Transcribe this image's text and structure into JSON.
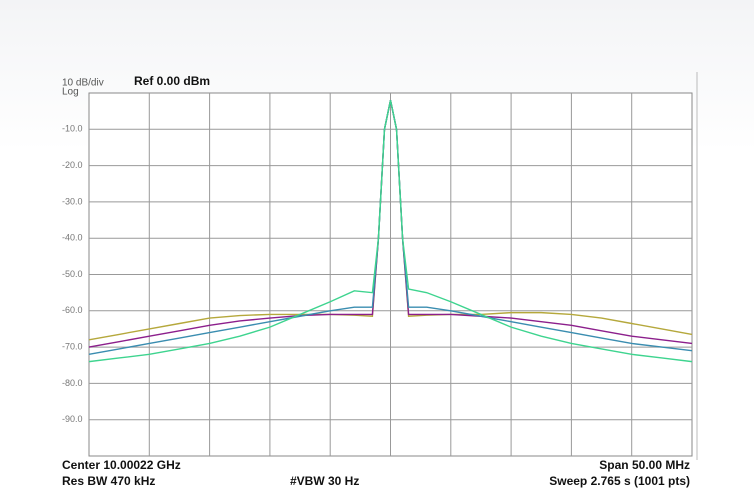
{
  "chart_data": {
    "type": "line",
    "scale_label": "10 dB/div",
    "scale_type": "Log",
    "ref_label": "Ref 0.00 dBm",
    "footer": {
      "center": "Center 10.00022 GHz",
      "span": "Span 50.00 MHz",
      "res_bw": "Res BW 470 kHz",
      "vbw": "#VBW 30 Hz",
      "sweep": "Sweep  2.765 s (1001 pts)"
    },
    "xlim": [
      9.97522,
      10.02522
    ],
    "ylim": [
      -100,
      0
    ],
    "yticks": [
      {
        "value": -10,
        "label": "-10.0"
      },
      {
        "value": -20,
        "label": "-20.0"
      },
      {
        "value": -30,
        "label": "-30.0"
      },
      {
        "value": -40,
        "label": "-40.0"
      },
      {
        "value": -50,
        "label": "-50.0"
      },
      {
        "value": -60,
        "label": "-60.0"
      },
      {
        "value": -70,
        "label": "-70.0"
      },
      {
        "value": -80,
        "label": "-80.0"
      },
      {
        "value": -90,
        "label": "-90.0"
      }
    ],
    "grid": true,
    "x": [
      9.97522,
      9.97772,
      9.98022,
      9.98272,
      9.98522,
      9.98772,
      9.99022,
      9.99272,
      9.99522,
      9.99722,
      9.99872,
      9.99922,
      9.99972,
      10.00022,
      10.00072,
      10.00122,
      10.00172,
      10.00322,
      10.00522,
      10.00772,
      10.01022,
      10.01272,
      10.01522,
      10.01772,
      10.02022,
      10.02272,
      10.02522
    ],
    "series": [
      {
        "color": "#b5a83c",
        "values": [
          -68,
          -66.5,
          -65,
          -63.5,
          -62,
          -61.3,
          -61,
          -61,
          -61,
          -61.2,
          -61.5,
          -40,
          -10,
          -2,
          -10,
          -40,
          -61.5,
          -61.2,
          -61,
          -61,
          -60.5,
          -60.5,
          -61,
          -62,
          -63.5,
          -65,
          -66.5
        ]
      },
      {
        "color": "#8c1f8c",
        "values": [
          -70,
          -68.5,
          -67,
          -65.5,
          -64,
          -62.8,
          -62,
          -61.3,
          -61,
          -61,
          -61,
          -40,
          -10,
          -2,
          -10,
          -40,
          -61,
          -61,
          -61,
          -61.5,
          -62,
          -63,
          -64,
          -65.5,
          -67,
          -68,
          -69
        ]
      },
      {
        "color": "#3a8db0",
        "values": [
          -72,
          -70.5,
          -69,
          -67.5,
          -66,
          -64.5,
          -63,
          -61.5,
          -60,
          -59,
          -59,
          -40,
          -10,
          -2,
          -10,
          -40,
          -59,
          -59,
          -60,
          -61.5,
          -63,
          -64.5,
          -66,
          -67.5,
          -69,
          -70,
          -71
        ]
      },
      {
        "color": "#3ed48f",
        "values": [
          -74,
          -73,
          -72,
          -70.5,
          -69,
          -67,
          -64.5,
          -61,
          -57.5,
          -54.5,
          -55,
          -40,
          -10,
          -2,
          -10,
          -40,
          -54,
          -55,
          -57.5,
          -61,
          -64.5,
          -67,
          -69,
          -70.5,
          -72,
          -73,
          -74
        ]
      }
    ]
  }
}
